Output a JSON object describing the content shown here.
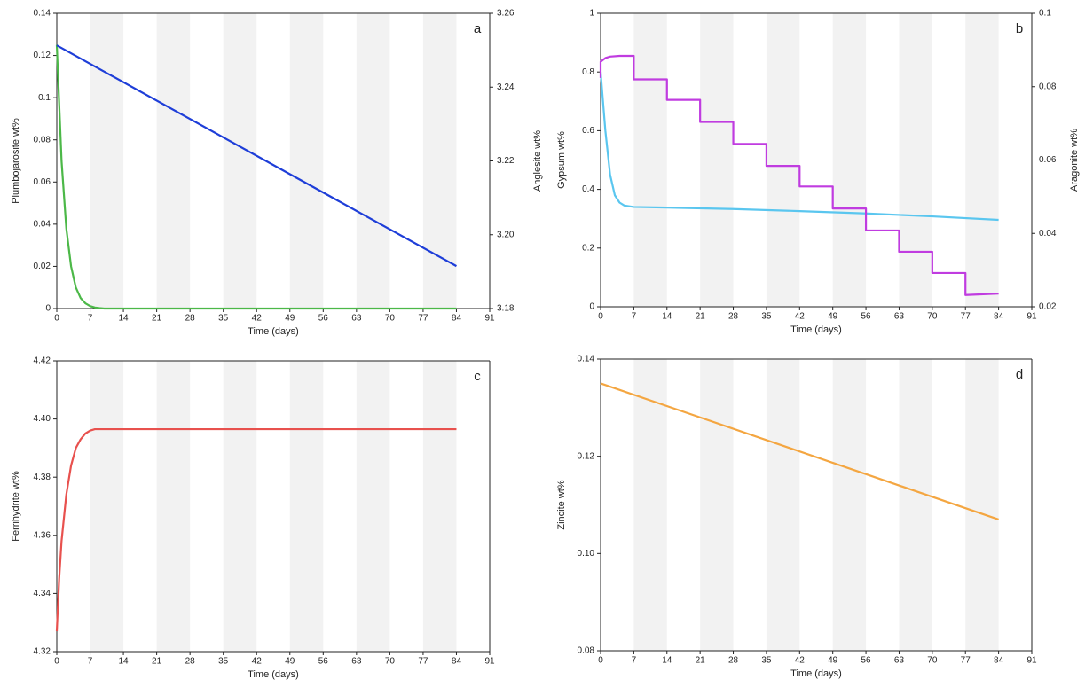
{
  "chart_data": [
    {
      "type": "line",
      "panel_label": "a",
      "x_label": "Time (days)",
      "y_label": "Plumbojarosite wt%",
      "y2_label": "Anglesite wt%",
      "xlim": [
        0,
        91
      ],
      "xticks": [
        0,
        7,
        14,
        21,
        28,
        35,
        42,
        49,
        56,
        63,
        70,
        77,
        84,
        91
      ],
      "ylim": [
        0,
        0.14
      ],
      "yticks": [
        0,
        0.02,
        0.04,
        0.06,
        0.08,
        0.1,
        0.12,
        0.14
      ],
      "y2lim": [
        3.18,
        3.26
      ],
      "y2ticks": [
        3.18,
        {
          "value": 3.2,
          "label": "3.20"
        },
        3.22,
        3.24,
        3.26
      ],
      "series": [
        {
          "name": "Plumbojarosite",
          "color": "#4cb848",
          "x": [
            0,
            1,
            2,
            3,
            4,
            5,
            6,
            7,
            8,
            9,
            10,
            14,
            28,
            42,
            56,
            70,
            84
          ],
          "values": [
            0.125,
            0.07,
            0.038,
            0.02,
            0.01,
            0.005,
            0.0025,
            0.0012,
            0.0005,
            0.0002,
            0,
            0,
            0,
            0,
            0,
            0,
            0
          ]
        },
        {
          "name": "Anglesite",
          "color": "#1e3ed8",
          "axis": "y2",
          "x": [
            0,
            84
          ],
          "values": [
            3.2513,
            3.1915
          ]
        }
      ]
    },
    {
      "type": "line",
      "panel_label": "b",
      "x_label": "Time (days)",
      "y_label": "Gypsum wt%",
      "y2_label": "Aragonite wt%",
      "xlim": [
        0,
        91
      ],
      "xticks": [
        0,
        7,
        14,
        21,
        28,
        35,
        42,
        49,
        56,
        63,
        70,
        77,
        84,
        91
      ],
      "ylim": [
        0,
        1
      ],
      "yticks": [
        0,
        0.2,
        0.4,
        0.6,
        0.8,
        1
      ],
      "y2lim": [
        0.02,
        0.1
      ],
      "y2ticks": [
        0.02,
        0.04,
        0.06,
        0.08,
        0.1
      ],
      "series": [
        {
          "name": "Gypsum",
          "color": "#5ac6ef",
          "x": [
            0,
            1,
            2,
            3,
            4,
            5,
            7,
            14,
            28,
            42,
            56,
            70,
            84
          ],
          "values": [
            0.8,
            0.6,
            0.45,
            0.38,
            0.355,
            0.345,
            0.34,
            0.338,
            0.333,
            0.326,
            0.318,
            0.308,
            0.296
          ]
        },
        {
          "name": "Aragonite",
          "color": "#c03ce0",
          "axis": "y2",
          "x": [
            0,
            0,
            1,
            2,
            4,
            7,
            7,
            14,
            14,
            21,
            21,
            28,
            28,
            35,
            35,
            42,
            42,
            49,
            49,
            56,
            56,
            63,
            63,
            70,
            70,
            77,
            77,
            84
          ],
          "values": [
            0.0824,
            0.0868,
            0.0878,
            0.0882,
            0.0884,
            0.0884,
            0.082,
            0.082,
            0.0764,
            0.0764,
            0.0704,
            0.0704,
            0.0644,
            0.0644,
            0.0584,
            0.0584,
            0.0528,
            0.0528,
            0.0468,
            0.0468,
            0.0408,
            0.0408,
            0.035,
            0.035,
            0.0292,
            0.0292,
            0.0232,
            0.0236
          ]
        }
      ]
    },
    {
      "type": "line",
      "panel_label": "c",
      "x_label": "Time (days)",
      "y_label": "Ferrihydrite wt%",
      "xlim": [
        0,
        91
      ],
      "xticks": [
        0,
        7,
        14,
        21,
        28,
        35,
        42,
        49,
        56,
        63,
        70,
        77,
        84,
        91
      ],
      "ylim": [
        4.32,
        4.42
      ],
      "yticks": [
        4.32,
        4.34,
        4.36,
        4.38,
        {
          "value": 4.4,
          "label": "4.40"
        },
        4.42
      ],
      "series": [
        {
          "name": "Ferrihydrite",
          "color": "#e8514e",
          "x": [
            0,
            0.5,
            1,
            2,
            3,
            4,
            5,
            6,
            7,
            8,
            10,
            84
          ],
          "values": [
            4.327,
            4.345,
            4.358,
            4.374,
            4.384,
            4.39,
            4.393,
            4.395,
            4.396,
            4.3965,
            4.3965,
            4.3965
          ]
        }
      ]
    },
    {
      "type": "line",
      "panel_label": "d",
      "x_label": "Time (days)",
      "y_label": "Zincite wt%",
      "xlim": [
        0,
        91
      ],
      "xticks": [
        0,
        7,
        14,
        21,
        28,
        35,
        42,
        49,
        56,
        63,
        70,
        77,
        84,
        91
      ],
      "ylim": [
        0.08,
        0.14
      ],
      "yticks": [
        0.08,
        {
          "value": 0.1,
          "label": "0.10"
        },
        0.12,
        0.14
      ],
      "series": [
        {
          "name": "Zincite",
          "color": "#f4a641",
          "x": [
            0,
            84
          ],
          "values": [
            0.135,
            0.107
          ]
        }
      ]
    }
  ]
}
